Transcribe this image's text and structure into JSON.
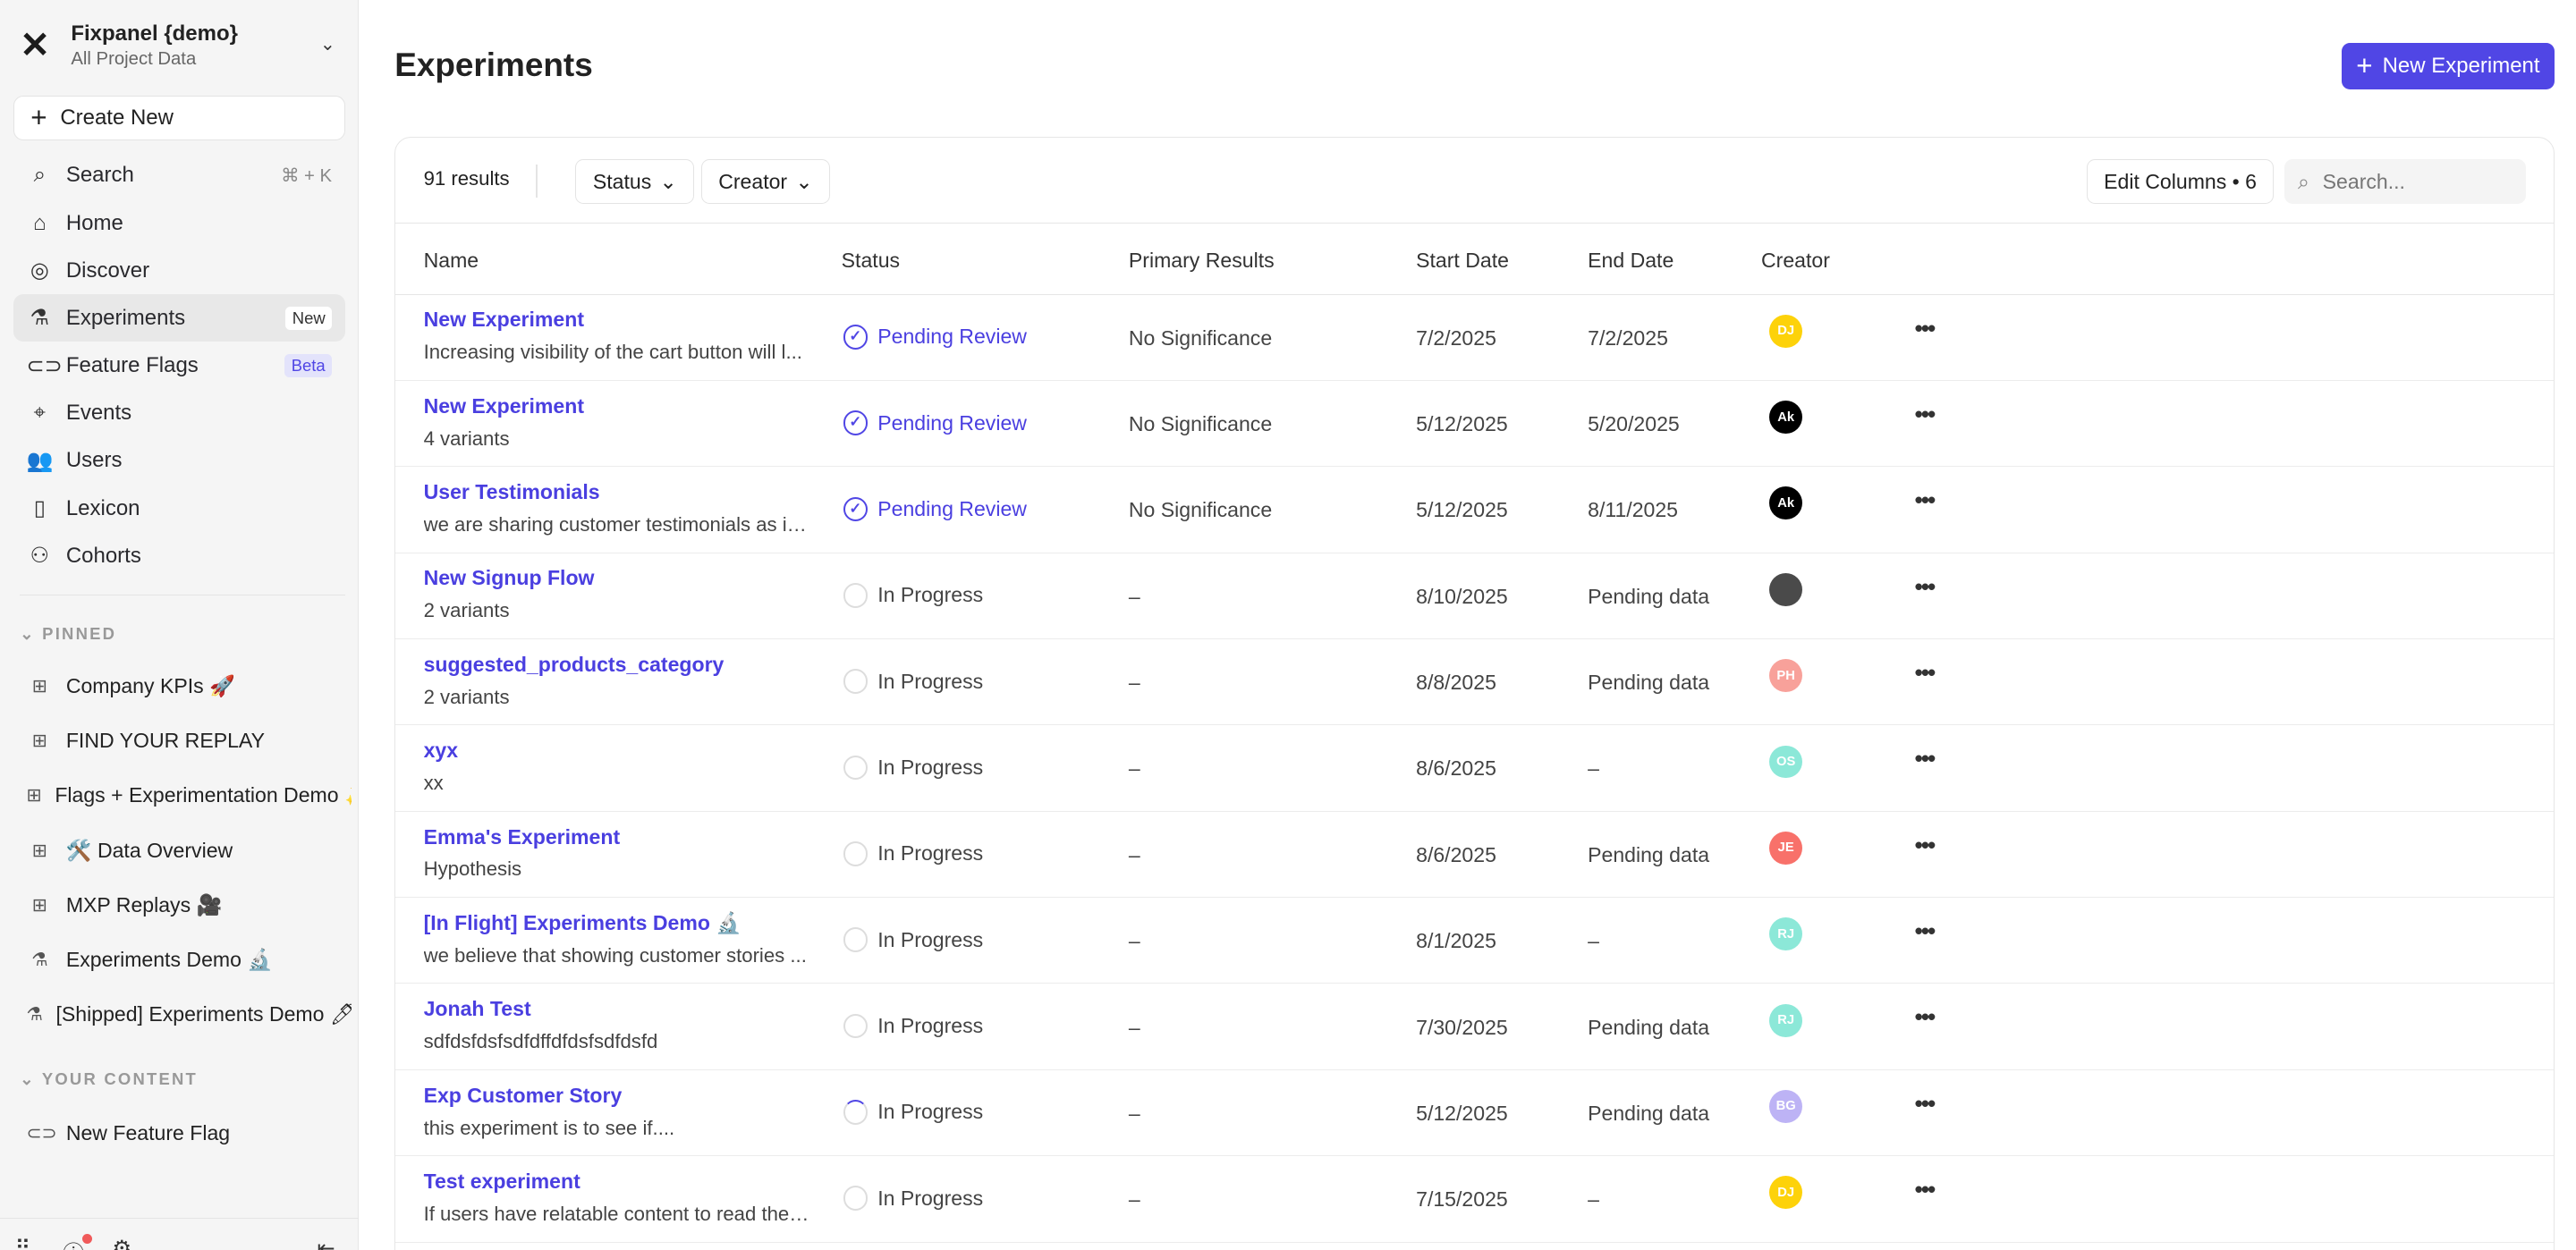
{
  "sidebar": {
    "project_name": "Fixpanel {demo}",
    "project_sub": "All Project Data",
    "create_new": "Create New",
    "nav": [
      {
        "label": "Search",
        "icon": "search-icon",
        "glyph": "⌕",
        "shortcut": "⌘ + K"
      },
      {
        "label": "Home",
        "icon": "home-icon",
        "glyph": "⌂"
      },
      {
        "label": "Discover",
        "icon": "compass-icon",
        "glyph": "◎"
      },
      {
        "label": "Experiments",
        "icon": "flask-icon",
        "glyph": "⚗",
        "badge": "New",
        "active": true
      },
      {
        "label": "Feature Flags",
        "icon": "toggle-icon",
        "glyph": "⊂⊃",
        "badge": "Beta"
      },
      {
        "label": "Events",
        "icon": "cursor-click-icon",
        "glyph": "⌖"
      },
      {
        "label": "Users",
        "icon": "users-icon",
        "glyph": "👥"
      },
      {
        "label": "Lexicon",
        "icon": "book-icon",
        "glyph": "▯"
      },
      {
        "label": "Cohorts",
        "icon": "cohorts-icon",
        "glyph": "⚇"
      }
    ],
    "pinned_label": "PINNED",
    "pinned": [
      {
        "label": "Company KPIs 🚀",
        "icon": "dashboard-icon"
      },
      {
        "label": "FIND YOUR REPLAY",
        "icon": "dashboard-icon"
      },
      {
        "label": "Flags + Experimentation Demo ✨",
        "icon": "dashboard-icon"
      },
      {
        "label": "🛠️ Data Overview",
        "icon": "dashboard-icon"
      },
      {
        "label": "MXP Replays 🎥",
        "icon": "dashboard-icon"
      },
      {
        "label": "Experiments Demo 🔬",
        "icon": "flask-icon"
      },
      {
        "label": "[Shipped] Experiments Demo 🖊",
        "icon": "flask-icon"
      }
    ],
    "your_content_label": "YOUR CONTENT",
    "your_content": [
      {
        "label": "New Feature Flag",
        "icon": "toggle-icon"
      }
    ]
  },
  "header": {
    "title": "Experiments",
    "new_button": "New Experiment"
  },
  "toolbar": {
    "results": "91 results",
    "status_filter": "Status",
    "creator_filter": "Creator",
    "edit_columns": "Edit Columns • 6",
    "search_placeholder": "Search..."
  },
  "columns": [
    "Name",
    "Status",
    "Primary Results",
    "Start Date",
    "End Date",
    "Creator"
  ],
  "accent": "#5046e5",
  "rows": [
    {
      "name": "New Experiment",
      "desc": "Increasing visibility of the cart button will l...",
      "status": "Pending Review",
      "primary": "No Significance",
      "start": "7/2/2025",
      "end": "7/2/2025",
      "creator": "DJ",
      "color": "#fdd20a"
    },
    {
      "name": "New Experiment",
      "desc": "4 variants",
      "status": "Pending Review",
      "primary": "No Significance",
      "start": "5/12/2025",
      "end": "5/20/2025",
      "creator": "Ak",
      "color": "#000000"
    },
    {
      "name": "User Testimonials",
      "desc": "we are sharing customer testimonials as in...",
      "status": "Pending Review",
      "primary": "No Significance",
      "start": "5/12/2025",
      "end": "8/11/2025",
      "creator": "Ak",
      "color": "#000000"
    },
    {
      "name": "New Signup Flow",
      "desc": "2 variants",
      "status": "In Progress",
      "primary": "–",
      "start": "8/10/2025",
      "end": "Pending data",
      "creator": "",
      "color": "#4a4a4a"
    },
    {
      "name": "suggested_products_category",
      "desc": "2 variants",
      "status": "In Progress",
      "primary": "–",
      "start": "8/8/2025",
      "end": "Pending data",
      "creator": "PH",
      "color": "#f8a19a"
    },
    {
      "name": "xyx",
      "desc": "xx",
      "status": "In Progress",
      "primary": "–",
      "start": "8/6/2025",
      "end": "–",
      "creator": "OS",
      "color": "#8ce8d8"
    },
    {
      "name": "Emma's Experiment",
      "desc": "Hypothesis",
      "status": "In Progress",
      "primary": "–",
      "start": "8/6/2025",
      "end": "Pending data",
      "creator": "JE",
      "color": "#f8716a"
    },
    {
      "name": "[In Flight] Experiments Demo 🔬",
      "desc": "we believe that showing customer stories ...",
      "status": "In Progress",
      "primary": "–",
      "start": "8/1/2025",
      "end": "–",
      "creator": "RJ",
      "color": "#8ce8d8"
    },
    {
      "name": "Jonah Test",
      "desc": "sdfdsfdsfsdfdffdfdsfsdfdsfd",
      "status": "In Progress",
      "primary": "–",
      "start": "7/30/2025",
      "end": "Pending data",
      "creator": "RJ",
      "color": "#8ce8d8"
    },
    {
      "name": "Exp Customer Story",
      "desc": "this experiment is to see if....",
      "status": "In Progress",
      "primary": "–",
      "start": "5/12/2025",
      "end": "Pending data",
      "creator": "BG",
      "color": "#bdb3f5",
      "loading": true
    },
    {
      "name": "Test experiment",
      "desc": "If users have relatable content to read they...",
      "status": "In Progress",
      "primary": "–",
      "start": "7/15/2025",
      "end": "–",
      "creator": "DJ",
      "color": "#fdd20a"
    }
  ]
}
